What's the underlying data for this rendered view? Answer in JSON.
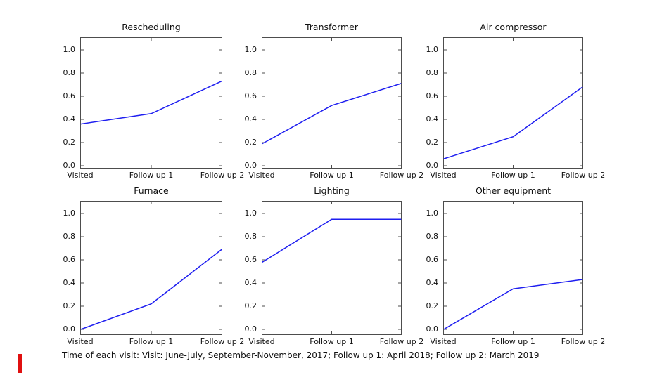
{
  "figure": {
    "background": "#ffffff",
    "line_color": "#1e1ef0",
    "frame_color": "#4d4d4d",
    "text_color": "#111111",
    "red_marker_color": "#e01010"
  },
  "chart_data": {
    "type": "line",
    "layout": "2x3 grid of small-multiple line subplots",
    "categories": [
      "Visited",
      "Follow up 1",
      "Follow up 2"
    ],
    "xlabel": "",
    "ylabel": "",
    "ylim": [
      -0.01,
      1.11
    ],
    "yticks": [
      0.0,
      0.2,
      0.4,
      0.6,
      0.8,
      1.0
    ],
    "ytick_labels": [
      "0.0",
      "0.2",
      "0.4",
      "0.6",
      "0.8",
      "1.0"
    ],
    "grid": false,
    "legend": "none",
    "series": [
      {
        "name": "Rescheduling",
        "values": [
          0.36,
          0.45,
          0.73
        ]
      },
      {
        "name": "Transformer",
        "values": [
          0.19,
          0.52,
          0.71
        ]
      },
      {
        "name": "Air compressor",
        "values": [
          0.06,
          0.25,
          0.68
        ]
      },
      {
        "name": "Furnace",
        "values": [
          0.0,
          0.22,
          0.69
        ]
      },
      {
        "name": "Lighting",
        "values": [
          0.58,
          0.95,
          0.95
        ]
      },
      {
        "name": "Other equipment",
        "values": [
          0.0,
          0.35,
          0.43
        ]
      }
    ],
    "caption": "Time of each visit: Visit: June-July, September-November, 2017; Follow up 1: April 2018; Follow up 2: March 2019"
  }
}
